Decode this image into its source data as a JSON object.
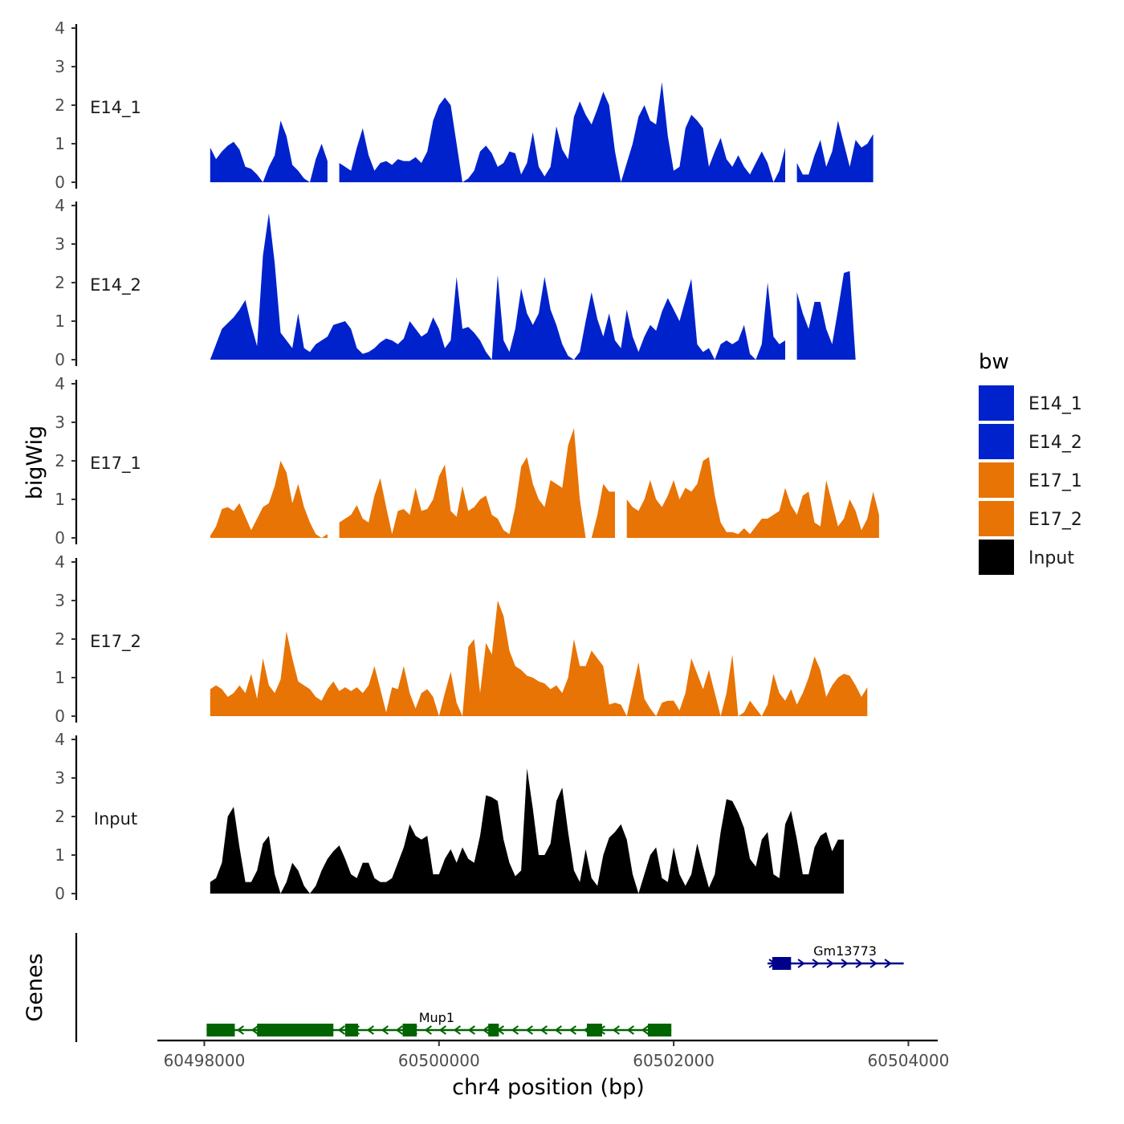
{
  "chart_data": {
    "type": "area",
    "title": "",
    "ylabel": "bigWig",
    "xlabel": "chr4 position (bp)",
    "genes_label": "Genes",
    "ylim": [
      0,
      4
    ],
    "y_ticks": [
      "0",
      "1",
      "2",
      "3",
      "4"
    ],
    "xlim": [
      60497600,
      60504250
    ],
    "x_ticks": [
      {
        "value": 60498000,
        "label": "60498000"
      },
      {
        "value": 60500000,
        "label": "60500000"
      },
      {
        "value": 60502000,
        "label": "60502000"
      },
      {
        "value": 60504000,
        "label": "60504000"
      }
    ],
    "x_start": 60498050,
    "x_step": 50,
    "legend": {
      "title": "bw",
      "entries": [
        {
          "label": "E14_1",
          "color": "#0022CC"
        },
        {
          "label": "E14_2",
          "color": "#0022CC"
        },
        {
          "label": "E17_1",
          "color": "#E87405"
        },
        {
          "label": "E17_2",
          "color": "#E87405"
        },
        {
          "label": "Input",
          "color": "#000000"
        }
      ]
    },
    "series": [
      {
        "name": "E14_1",
        "color": "#0022CC",
        "values": [
          0.9,
          0.6,
          0.8,
          0.95,
          1.05,
          0.85,
          0.4,
          0.35,
          0.2,
          0.0,
          0.4,
          0.7,
          1.6,
          1.2,
          0.45,
          0.3,
          0.1,
          0.0,
          0.6,
          1.0,
          0.55,
          0.45,
          0.5,
          0.4,
          0.3,
          0.9,
          1.4,
          0.7,
          0.3,
          0.5,
          0.55,
          0.45,
          0.6,
          0.55,
          0.55,
          0.65,
          0.5,
          0.8,
          1.6,
          2.0,
          2.2,
          2.0,
          1.0,
          0.0,
          0.1,
          0.3,
          0.8,
          0.95,
          0.75,
          0.4,
          0.5,
          0.8,
          0.75,
          0.2,
          0.5,
          1.3,
          0.4,
          0.15,
          0.4,
          1.45,
          0.85,
          0.6,
          1.7,
          2.1,
          1.75,
          1.5,
          1.9,
          2.35,
          2.0,
          0.8,
          0.0,
          0.5,
          1.0,
          1.7,
          2.0,
          1.6,
          1.5,
          2.6,
          1.2,
          0.3,
          0.4,
          1.4,
          1.75,
          1.6,
          1.4,
          0.4,
          0.8,
          1.15,
          0.6,
          0.4,
          0.7,
          0.4,
          0.2,
          0.5,
          0.8,
          0.5,
          0.0,
          0.3,
          0.9,
          1.1,
          0.5,
          0.2,
          0.2,
          0.7,
          1.1,
          0.4,
          0.8,
          1.6,
          1.0,
          0.4,
          1.1,
          0.9,
          1.0,
          1.25
        ],
        "gaps": [
          [
            60499050,
            60499150
          ],
          [
            60502950,
            60503050
          ]
        ]
      },
      {
        "name": "E14_2",
        "color": "#0022CC",
        "values": [
          0.0,
          0.4,
          0.8,
          0.95,
          1.1,
          1.3,
          1.55,
          0.9,
          0.35,
          2.7,
          3.8,
          2.5,
          0.7,
          0.5,
          0.3,
          1.2,
          0.3,
          0.2,
          0.4,
          0.5,
          0.6,
          0.9,
          0.95,
          1.0,
          0.8,
          0.3,
          0.15,
          0.2,
          0.3,
          0.45,
          0.55,
          0.5,
          0.4,
          0.55,
          1.0,
          0.8,
          0.6,
          0.7,
          1.1,
          0.8,
          0.3,
          0.5,
          2.15,
          0.8,
          0.85,
          0.7,
          0.5,
          0.2,
          0.0,
          2.2,
          0.5,
          0.2,
          0.8,
          1.85,
          1.2,
          0.9,
          1.2,
          2.15,
          1.3,
          0.9,
          0.4,
          0.1,
          0.0,
          0.2,
          1.0,
          1.75,
          1.05,
          0.6,
          1.2,
          0.5,
          0.3,
          1.3,
          0.6,
          0.2,
          0.6,
          0.9,
          0.75,
          1.25,
          1.6,
          1.3,
          1.0,
          1.55,
          2.1,
          0.4,
          0.2,
          0.3,
          0.0,
          0.4,
          0.5,
          0.4,
          0.5,
          0.9,
          0.15,
          0.0,
          0.4,
          2.0,
          0.6,
          0.4,
          0.5,
          0.3,
          1.75,
          1.2,
          0.8,
          1.5,
          1.5,
          0.8,
          0.4,
          1.3,
          2.25,
          2.3,
          0.0
        ],
        "gaps": [
          [
            60502950,
            60503050
          ]
        ]
      },
      {
        "name": "E17_1",
        "color": "#E87405",
        "values": [
          0.05,
          0.3,
          0.75,
          0.8,
          0.7,
          0.9,
          0.55,
          0.2,
          0.5,
          0.8,
          0.9,
          1.35,
          2.0,
          1.7,
          0.9,
          1.4,
          0.8,
          0.4,
          0.1,
          0.0,
          0.1,
          0.3,
          0.4,
          0.5,
          0.6,
          0.85,
          0.5,
          0.4,
          1.1,
          1.55,
          0.8,
          0.1,
          0.7,
          0.75,
          0.6,
          1.3,
          0.7,
          0.75,
          1.0,
          1.6,
          1.9,
          0.7,
          0.55,
          1.35,
          0.7,
          0.8,
          1.0,
          1.1,
          0.6,
          0.5,
          0.2,
          0.1,
          0.8,
          1.85,
          2.1,
          1.4,
          1.0,
          0.8,
          1.5,
          1.4,
          1.3,
          2.4,
          2.85,
          1.0,
          0.0,
          0.0,
          0.6,
          1.4,
          1.2,
          1.2,
          1.15,
          1.0,
          0.8,
          0.7,
          1.0,
          1.5,
          1.0,
          0.8,
          1.1,
          1.5,
          1.0,
          1.3,
          1.2,
          1.4,
          2.0,
          2.1,
          1.1,
          0.4,
          0.15,
          0.15,
          0.1,
          0.25,
          0.1,
          0.3,
          0.5,
          0.5,
          0.6,
          0.7,
          1.3,
          0.85,
          0.6,
          1.1,
          1.2,
          0.4,
          0.3,
          1.5,
          0.9,
          0.3,
          0.5,
          1.0,
          0.7,
          0.2,
          0.5,
          1.2,
          0.6
        ],
        "gaps": [
          [
            60499050,
            60499150
          ],
          [
            60501500,
            60501600
          ]
        ]
      },
      {
        "name": "E17_2",
        "color": "#E87405",
        "values": [
          0.7,
          0.8,
          0.7,
          0.5,
          0.6,
          0.8,
          0.6,
          1.1,
          0.45,
          1.5,
          0.8,
          0.6,
          0.95,
          2.2,
          1.5,
          0.9,
          0.8,
          0.7,
          0.5,
          0.4,
          0.7,
          0.9,
          0.65,
          0.75,
          0.65,
          0.75,
          0.6,
          0.8,
          1.3,
          0.7,
          0.1,
          0.75,
          0.7,
          1.3,
          0.6,
          0.2,
          0.6,
          0.7,
          0.5,
          0.0,
          0.6,
          1.15,
          0.35,
          0.0,
          1.8,
          2.0,
          0.6,
          1.9,
          1.6,
          3.0,
          2.6,
          1.7,
          1.3,
          1.2,
          1.05,
          1.0,
          0.9,
          0.85,
          0.7,
          0.8,
          0.6,
          1.0,
          2.0,
          1.3,
          1.3,
          1.7,
          1.5,
          1.3,
          0.3,
          0.35,
          0.3,
          0.0,
          0.7,
          1.4,
          0.45,
          0.2,
          0.0,
          0.35,
          0.4,
          0.4,
          0.15,
          0.6,
          1.5,
          1.1,
          0.7,
          1.2,
          0.6,
          0.0,
          0.6,
          1.6,
          0.0,
          0.1,
          0.4,
          0.2,
          0.0,
          0.3,
          1.1,
          0.6,
          0.4,
          0.7,
          0.3,
          0.6,
          1.0,
          1.55,
          1.2,
          0.5,
          0.8,
          1.0,
          1.1,
          1.05,
          0.8,
          0.5,
          0.75
        ],
        "gaps": []
      },
      {
        "name": "Input",
        "color": "#000000",
        "values": [
          0.3,
          0.4,
          0.8,
          2.0,
          2.25,
          1.2,
          0.3,
          0.3,
          0.6,
          1.3,
          1.5,
          0.5,
          0.0,
          0.3,
          0.8,
          0.6,
          0.2,
          0.0,
          0.2,
          0.6,
          0.9,
          1.1,
          1.25,
          0.9,
          0.5,
          0.4,
          0.8,
          0.8,
          0.4,
          0.3,
          0.3,
          0.4,
          0.8,
          1.2,
          1.8,
          1.5,
          1.4,
          1.5,
          0.5,
          0.5,
          0.9,
          1.15,
          0.8,
          1.2,
          0.9,
          0.8,
          1.5,
          2.55,
          2.5,
          2.4,
          1.4,
          0.8,
          0.45,
          0.6,
          3.25,
          2.2,
          1.0,
          1.0,
          1.3,
          2.4,
          2.75,
          1.6,
          0.6,
          0.3,
          1.15,
          0.4,
          0.2,
          1.0,
          1.45,
          1.6,
          1.8,
          1.4,
          0.5,
          0.0,
          0.5,
          1.0,
          1.2,
          0.4,
          0.3,
          1.2,
          0.5,
          0.2,
          0.5,
          1.3,
          0.7,
          0.15,
          0.5,
          1.6,
          2.45,
          2.4,
          2.1,
          1.7,
          0.9,
          0.7,
          1.4,
          1.6,
          0.5,
          0.4,
          1.8,
          2.15,
          1.4,
          0.5,
          0.5,
          1.2,
          1.5,
          1.6,
          1.1,
          1.4,
          1.4
        ],
        "gaps": []
      }
    ],
    "genes": [
      {
        "name": "Mup1",
        "strand": "-",
        "color": "#006400",
        "row": 2,
        "start": 60498020,
        "end": 60501980,
        "label_pos": 60499980,
        "exons": [
          [
            60498020,
            60498260
          ],
          [
            60498450,
            60499100
          ],
          [
            60499200,
            60499310
          ],
          [
            60499690,
            60499810
          ],
          [
            60500420,
            60500510
          ],
          [
            60501260,
            60501390
          ],
          [
            60501780,
            60501980
          ]
        ]
      },
      {
        "name": "Gm13773",
        "strand": "+",
        "color": "#00008B",
        "row": 1,
        "start": 60502800,
        "end": 60503960,
        "label_pos": 60503460,
        "exons": [
          [
            60502840,
            60503000
          ]
        ]
      }
    ]
  }
}
